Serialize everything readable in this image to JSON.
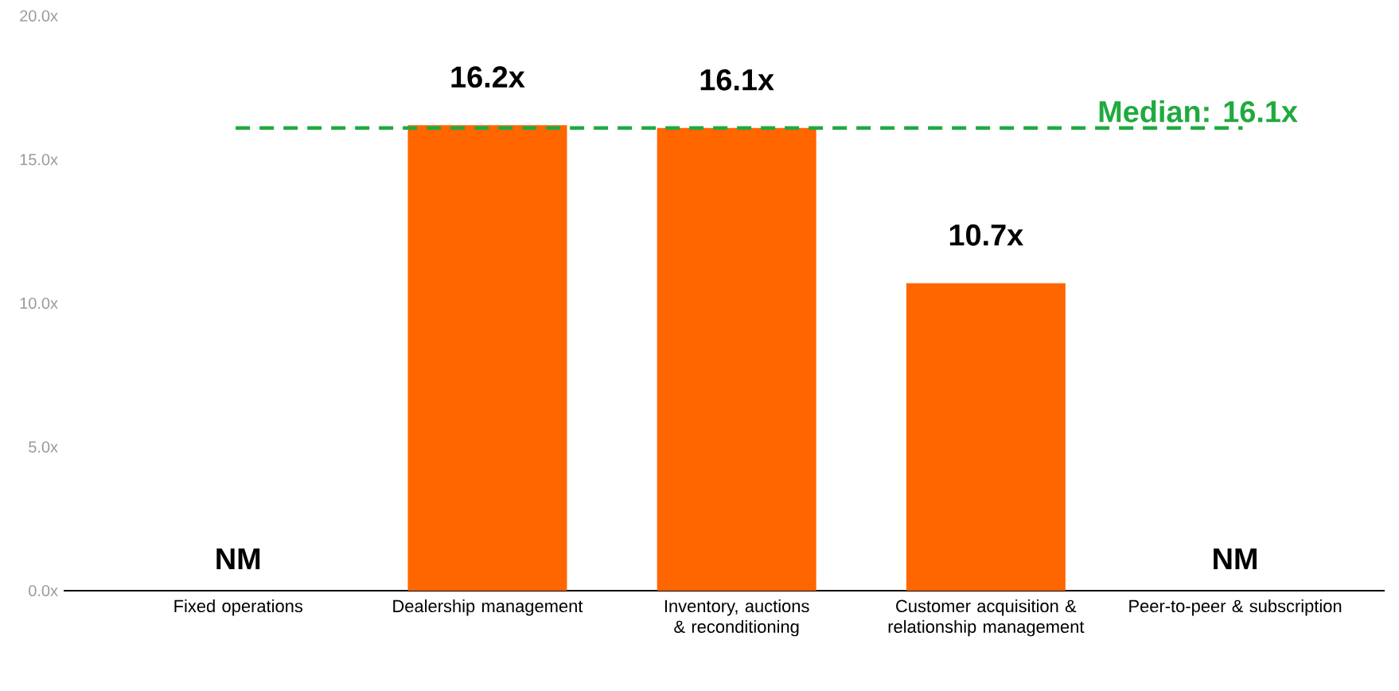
{
  "chart_data": {
    "type": "bar",
    "categories": [
      "Fixed operations",
      "Dealership management",
      "Inventory, auctions & reconditioning",
      "Customer acquisition & relationship management",
      "Peer-to-peer & subscription"
    ],
    "values": [
      null,
      16.2,
      16.1,
      10.7,
      null
    ],
    "value_labels": [
      "NM",
      "16.2x",
      "16.1x",
      "10.7x",
      "NM"
    ],
    "color": "#ff6600",
    "ylim": [
      0,
      20
    ],
    "yticks": [
      {
        "value": 0,
        "label": "0.0x"
      },
      {
        "value": 5,
        "label": "5.0x"
      },
      {
        "value": 10,
        "label": "10.0x"
      },
      {
        "value": 15,
        "label": "15.0x"
      },
      {
        "value": 20,
        "label": "20.0x"
      }
    ],
    "ref_lines": [
      {
        "axis": "y",
        "value": 16.1,
        "label": "Median: 16.1x",
        "color": "#1faa3f",
        "line_style": "dashed"
      }
    ]
  }
}
